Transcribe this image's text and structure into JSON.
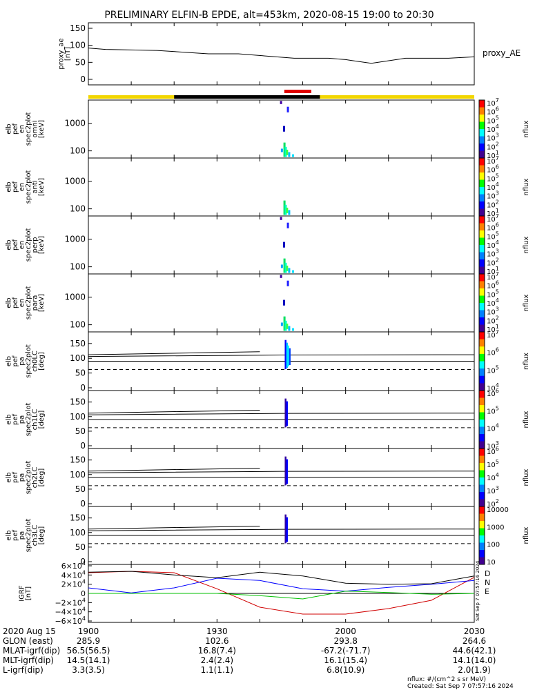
{
  "title": "PRELIMINARY ELFIN-B EPDE, alt=453km, 2020-08-15 19:00 to 20:30",
  "colors": {
    "sun_bar": "#f2d600",
    "shadow_bar": "#000000",
    "science_zone_bar": "#e00000",
    "igrf_D": "#d00000",
    "igrf_N": "#0000ff",
    "igrf_E": "#00c000",
    "igrf_total": "#000000"
  },
  "chart_data": [
    {
      "type": "line",
      "panel": "proxy_ae",
      "ylabel": [
        "proxy_ae",
        "[nT]"
      ],
      "legend_label": "proxy_AE",
      "yticks": [
        "150",
        "100",
        "50",
        "0"
      ],
      "ylim": [
        0,
        150
      ],
      "x_minutes": [
        0,
        4,
        16,
        28,
        35,
        48,
        56,
        60,
        66,
        74,
        84,
        90
      ],
      "values": [
        92,
        88,
        85,
        75,
        75,
        62,
        62,
        58,
        47,
        62,
        62,
        66
      ]
    },
    {
      "type": "heatmap",
      "panel": "en_spec2plot_omni",
      "ylabel": [
        "elb",
        "pef",
        "en",
        "spec2plot",
        "omni",
        "[keV]"
      ],
      "yticks": [
        "1000",
        "100"
      ],
      "ylim": [
        55,
        7000
      ],
      "colorbar_label": "nflux",
      "colorbar_ticks": [
        "10⁷",
        "10⁶",
        "10⁵",
        "10⁴",
        "10³",
        "10²",
        "10¹"
      ]
    },
    {
      "type": "heatmap",
      "panel": "en_spec2plot_anti",
      "ylabel": [
        "elb",
        "pef",
        "en",
        "spec2plot",
        "anti",
        "[keV]"
      ],
      "yticks": [
        "1000",
        "100"
      ],
      "ylim": [
        55,
        7000
      ],
      "colorbar_label": "nflux",
      "colorbar_ticks": [
        "10⁷",
        "10⁶",
        "10⁵",
        "10⁴",
        "10³",
        "10²",
        "10¹"
      ]
    },
    {
      "type": "heatmap",
      "panel": "en_spec2plot_perp",
      "ylabel": [
        "elb",
        "pef",
        "en",
        "spec2plot",
        "perp",
        "[keV]"
      ],
      "yticks": [
        "1000",
        "100"
      ],
      "ylim": [
        55,
        7000
      ],
      "colorbar_label": "nflux",
      "colorbar_ticks": [
        "10⁷",
        "10⁶",
        "10⁵",
        "10⁴",
        "10³",
        "10²",
        "10¹"
      ]
    },
    {
      "type": "heatmap",
      "panel": "en_spec2plot_para",
      "ylabel": [
        "elb",
        "pef",
        "en",
        "spec2plot",
        "para",
        "[keV]"
      ],
      "yticks": [
        "1000",
        "100"
      ],
      "ylim": [
        55,
        7000
      ],
      "colorbar_label": "nflux",
      "colorbar_ticks": [
        "10⁷",
        "10⁶",
        "10⁵",
        "10⁴",
        "10³",
        "10²",
        "10¹"
      ]
    },
    {
      "type": "heatmap",
      "panel": "pa_spec2plot_ch0LC",
      "ylabel": [
        "elb",
        "pef",
        "pa",
        "spec2plot",
        "ch0LC",
        "[deg]"
      ],
      "yticks": [
        "150",
        "100",
        "50",
        "0"
      ],
      "ylim": [
        0,
        180
      ],
      "colorbar_label": "nflux",
      "colorbar_ticks": [
        "10⁷",
        "10⁶",
        "10⁵",
        "10⁴"
      ]
    },
    {
      "type": "heatmap",
      "panel": "pa_spec2plot_ch1LC",
      "ylabel": [
        "elb",
        "pef",
        "pa",
        "spec2plot",
        "ch1LC",
        "[deg]"
      ],
      "yticks": [
        "150",
        "100",
        "50",
        "0"
      ],
      "ylim": [
        0,
        180
      ],
      "colorbar_label": "nflux",
      "colorbar_ticks": [
        "10⁶",
        "10⁵",
        "10⁴",
        "10³"
      ]
    },
    {
      "type": "heatmap",
      "panel": "pa_spec2plot_ch2LC",
      "ylabel": [
        "elb",
        "pef",
        "pa",
        "spec2plot",
        "ch2LC",
        "[deg]"
      ],
      "yticks": [
        "150",
        "100",
        "50",
        "0"
      ],
      "ylim": [
        0,
        180
      ],
      "colorbar_label": "nflux",
      "colorbar_ticks": [
        "10⁶",
        "10⁵",
        "10⁴",
        "10³",
        "10²"
      ]
    },
    {
      "type": "heatmap",
      "panel": "pa_spec2plot_ch3LC",
      "ylabel": [
        "elb",
        "pef",
        "pa",
        "spec2plot",
        "ch3LC",
        "[deg]"
      ],
      "yticks": [
        "150",
        "100",
        "50",
        "0"
      ],
      "ylim": [
        0,
        180
      ],
      "colorbar_label": "nflux",
      "colorbar_ticks": [
        "10000",
        "1000",
        "100",
        "10"
      ]
    },
    {
      "type": "line",
      "panel": "igrf",
      "ylabel": [
        "IGRF",
        "[nT]"
      ],
      "yticks": [
        "6×10⁴",
        "4×10⁴",
        "2×10⁴",
        "0",
        "−2×10⁴",
        "−4×10⁴",
        "−6×10⁴"
      ],
      "ylim": [
        -60000,
        60000
      ],
      "x_minutes": [
        0,
        10,
        20,
        30,
        40,
        50,
        60,
        70,
        80,
        90
      ],
      "series": [
        {
          "name": "D",
          "color": "#d00000",
          "values": [
            45000,
            48000,
            45000,
            10000,
            -30000,
            -45000,
            -45000,
            -33000,
            -15000,
            35000
          ]
        },
        {
          "name": "N",
          "color": "#0000ff",
          "values": [
            12000,
            1000,
            12000,
            33000,
            28000,
            10000,
            5000,
            13000,
            20000,
            28000
          ]
        },
        {
          "name": "E",
          "color": "#00c000",
          "values": [
            0,
            0,
            0,
            0,
            -5000,
            -12000,
            5000,
            2000,
            -2000,
            0
          ]
        },
        {
          "color": "#000000",
          "values": [
            46000,
            48000,
            40000,
            34000,
            46000,
            38000,
            22000,
            20000,
            21000,
            38000
          ]
        }
      ]
    }
  ],
  "time_axis": {
    "ticks": [
      "1900",
      "1930",
      "2000",
      "2030"
    ],
    "xlim_minutes": [
      0,
      90
    ]
  },
  "ephemeris_rows": [
    {
      "label": "2020 Aug 15",
      "values": [
        "1900",
        "1930",
        "2000",
        "2030"
      ]
    },
    {
      "label": "GLON (east)",
      "values": [
        "285.9",
        "102.6",
        "293.8",
        "264.6"
      ]
    },
    {
      "label": "MLAT-igrf(dip)",
      "values": [
        "56.5(56.5)",
        "16.8(7.4)",
        "-67.2(-71.7)",
        "44.6(42.1)"
      ]
    },
    {
      "label": "MLT-igrf(dip)",
      "values": [
        "14.5(14.1)",
        "2.4(2.4)",
        "16.1(15.4)",
        "14.1(14.0)"
      ]
    },
    {
      "label": "L-igrf(dip)",
      "values": [
        "3.3(3.5)",
        "1.1(1.1)",
        "6.8(10.9)",
        "2.0(1.9)"
      ]
    }
  ],
  "footer": {
    "units_note": "nflux: #/(cm^2 s sr MeV)",
    "created": "Created: Sat Sep  7 07:57:16 2024",
    "side_stamp": "Sat Sep  7 07:57:16 2024"
  }
}
